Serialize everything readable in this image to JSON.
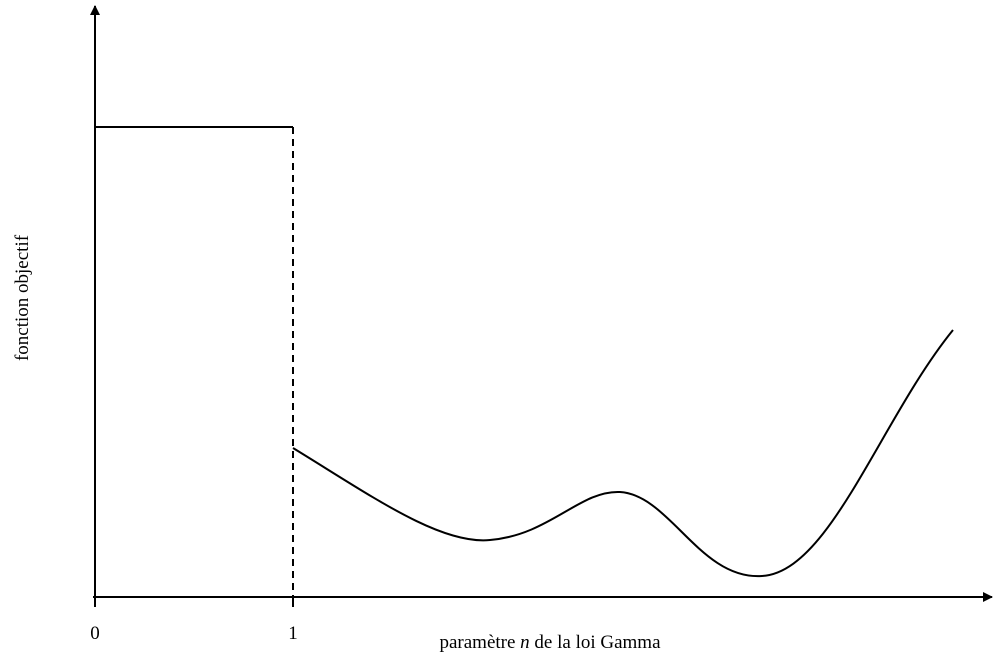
{
  "axes": {
    "x_label": {
      "parts": [
        "paramètre ",
        "n",
        " de la loi Gamma"
      ]
    },
    "y_label": "fonction objectif",
    "x_ticks": [
      "0",
      "1"
    ]
  }
}
